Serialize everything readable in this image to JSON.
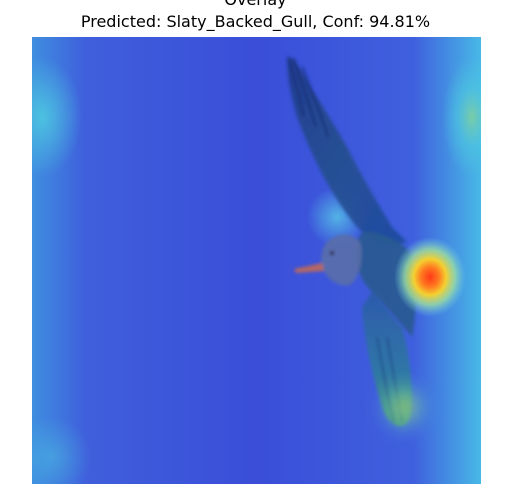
{
  "figure": {
    "title": "Overlay",
    "subtitle": "Predicted: Slaty_Backed_Gull, Conf: 94.81%"
  },
  "heatmap": {
    "colormap": "jet",
    "hotspot_color": "#f04020",
    "background_color": "#3b4fd6",
    "edge_color": "#4fb0e0"
  }
}
